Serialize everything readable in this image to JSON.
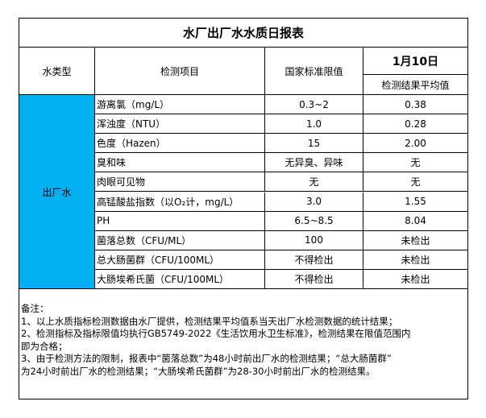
{
  "title": "水厂出厂水水质日报表",
  "headers": {
    "type": "水类型",
    "item": "检测项目",
    "standard": "国家标准限值",
    "date": "1月10日",
    "result": "检测结果平均值"
  },
  "water_type": "出厂水",
  "rows": [
    {
      "item": "游离氯（mg/L）",
      "standard": "0.3~2",
      "result": "0.38"
    },
    {
      "item": "浑浊度（NTU）",
      "standard": "1.0",
      "result": "0.28"
    },
    {
      "item": "色度（Hazen）",
      "standard": "15",
      "result": "2.00"
    },
    {
      "item": "臭和味",
      "standard": "无异臭、异味",
      "result": "无"
    },
    {
      "item": "肉眼可见物",
      "standard": "无",
      "result": "无"
    },
    {
      "item": "高锰酸盐指数（以O₂计，mg/L）",
      "standard": "3.0",
      "result": "1.55"
    },
    {
      "item": "PH",
      "standard": "6.5~8.5",
      "result": "8.04"
    },
    {
      "item": "菌落总数（CFU/ML）",
      "standard": "100",
      "result": "未检出"
    },
    {
      "item": "总大肠菌群（CFU/100ML）",
      "standard": "不得检出",
      "result": "未检出"
    },
    {
      "item": "大肠埃希氏菌（CFU/100ML）",
      "standard": "不得检出",
      "result": "未检出"
    }
  ],
  "notes": [
    "备注：",
    "1、以上水质指标检测数据由水厂提供，检测结果平均值系当天出厂水检测数据的统计结果；",
    "2、检测指标及指标限值均执行GB5749-2022《生活饮用水卫生标准》，检测结果在限值范围内",
    "即为合格；",
    "3、由于检测方法的限制，报表中“菌落总数”为48小时前出厂水的检测结果；“总大肠菌群”",
    "为24小时前出厂水的检测结果；“大肠埃希氏菌群”为28-30小时前出厂水的检测结果。"
  ],
  "colors": {
    "water_type_bg": "#00b0f0"
  }
}
